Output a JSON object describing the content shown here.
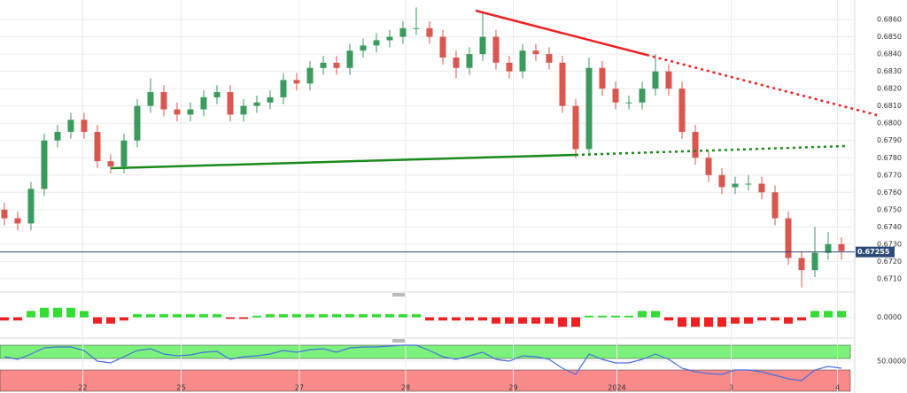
{
  "chart_data": {
    "type": "candlestick",
    "xlim": [
      -0.33,
      64
    ],
    "xticks": [
      {
        "value": 5.9,
        "label": "22"
      },
      {
        "value": 13.3,
        "label": "25"
      },
      {
        "value": 22.2,
        "label": "27"
      },
      {
        "value": 30.2,
        "label": "28"
      },
      {
        "value": 38.3,
        "label": "29"
      },
      {
        "value": 46.1,
        "label": "2024"
      },
      {
        "value": 54.7,
        "label": "3"
      },
      {
        "value": 62.7,
        "label": "4"
      }
    ],
    "ylim": [
      0.67033,
      0.68713
    ],
    "yticks": [
      {
        "value": 0.671,
        "label": "0.6710"
      },
      {
        "value": 0.672,
        "label": "0.6720"
      },
      {
        "value": 0.673,
        "label": "0.6730"
      },
      {
        "value": 0.674,
        "label": "0.6740"
      },
      {
        "value": 0.675,
        "label": "0.6750"
      },
      {
        "value": 0.676,
        "label": "0.6760"
      },
      {
        "value": 0.677,
        "label": "0.6770"
      },
      {
        "value": 0.678,
        "label": "0.6780"
      },
      {
        "value": 0.679,
        "label": "0.6790"
      },
      {
        "value": 0.68,
        "label": "0.6800"
      },
      {
        "value": 0.681,
        "label": "0.6810"
      },
      {
        "value": 0.682,
        "label": "0.6820"
      },
      {
        "value": 0.683,
        "label": "0.6830"
      },
      {
        "value": 0.684,
        "label": "0.6840"
      },
      {
        "value": 0.685,
        "label": "0.6850"
      },
      {
        "value": 0.686,
        "label": "0.6860"
      }
    ],
    "grid": true,
    "up_color": "#3a9b5c",
    "down_color": "#d9574f",
    "last_price": 0.67255,
    "open": [
      0.675,
      0.6745,
      0.6742,
      0.6762,
      0.679,
      0.6795,
      0.6802,
      0.6795,
      0.6778,
      0.6775,
      0.679,
      0.681,
      0.6818,
      0.6808,
      0.6805,
      0.6808,
      0.6815,
      0.6818,
      0.6805,
      0.681,
      0.6812,
      0.6815,
      0.6825,
      0.6823,
      0.6832,
      0.6835,
      0.6832,
      0.6842,
      0.6845,
      0.6848,
      0.685,
      0.6855,
      0.6855,
      0.685,
      0.6838,
      0.6832,
      0.684,
      0.685,
      0.6835,
      0.683,
      0.6842,
      0.684,
      0.6835,
      0.681,
      0.6785,
      0.6832,
      0.682,
      0.6812,
      0.6812,
      0.682,
      0.683,
      0.682,
      0.6795,
      0.678,
      0.677,
      0.6763,
      0.6765,
      0.6765,
      0.676,
      0.6745,
      0.6722,
      0.6715,
      0.6725,
      0.673
    ],
    "high": [
      0.6754,
      0.6749,
      0.6766,
      0.6794,
      0.6799,
      0.6806,
      0.6806,
      0.6799,
      0.6782,
      0.6794,
      0.6814,
      0.6826,
      0.6822,
      0.6812,
      0.6812,
      0.6819,
      0.6822,
      0.6822,
      0.6814,
      0.6816,
      0.6819,
      0.6829,
      0.6829,
      0.6836,
      0.6839,
      0.6839,
      0.6846,
      0.6849,
      0.6852,
      0.6854,
      0.6859,
      0.6867,
      0.6859,
      0.6854,
      0.6842,
      0.6844,
      0.6865,
      0.6854,
      0.6839,
      0.6846,
      0.6846,
      0.6844,
      0.6839,
      0.6814,
      0.6838,
      0.6836,
      0.6824,
      0.6816,
      0.6824,
      0.684,
      0.6834,
      0.6824,
      0.6799,
      0.6784,
      0.6774,
      0.6769,
      0.677,
      0.6769,
      0.6764,
      0.6749,
      0.6726,
      0.674,
      0.6737,
      0.6734
    ],
    "low": [
      0.6741,
      0.6738,
      0.6738,
      0.6758,
      0.6786,
      0.6791,
      0.6791,
      0.6774,
      0.6771,
      0.6771,
      0.6786,
      0.6806,
      0.6804,
      0.6801,
      0.6801,
      0.6804,
      0.6811,
      0.6801,
      0.6801,
      0.6806,
      0.6808,
      0.6811,
      0.6819,
      0.6819,
      0.6828,
      0.6828,
      0.6828,
      0.6838,
      0.6841,
      0.6844,
      0.6846,
      0.6851,
      0.6846,
      0.6834,
      0.6826,
      0.6828,
      0.6836,
      0.6831,
      0.6826,
      0.6826,
      0.6836,
      0.6831,
      0.6806,
      0.678,
      0.6781,
      0.6816,
      0.6808,
      0.6808,
      0.6808,
      0.6816,
      0.6816,
      0.6791,
      0.6776,
      0.6766,
      0.6759,
      0.6759,
      0.6761,
      0.6756,
      0.6741,
      0.6718,
      0.6705,
      0.6711,
      0.6721,
      0.6721
    ],
    "close": [
      0.6745,
      0.6742,
      0.6762,
      0.679,
      0.6795,
      0.6802,
      0.6795,
      0.6778,
      0.6775,
      0.679,
      0.681,
      0.6818,
      0.6808,
      0.6805,
      0.6808,
      0.6815,
      0.6818,
      0.6805,
      0.681,
      0.6812,
      0.6815,
      0.6825,
      0.6823,
      0.6832,
      0.6835,
      0.6832,
      0.6842,
      0.6845,
      0.6848,
      0.685,
      0.6855,
      0.6855,
      0.685,
      0.6838,
      0.6832,
      0.684,
      0.685,
      0.6835,
      0.683,
      0.6842,
      0.684,
      0.6835,
      0.681,
      0.6785,
      0.6832,
      0.682,
      0.6812,
      0.6812,
      0.682,
      0.683,
      0.682,
      0.6795,
      0.678,
      0.677,
      0.6763,
      0.6765,
      0.6765,
      0.676,
      0.6745,
      0.6722,
      0.6715,
      0.6725,
      0.673,
      0.6726
    ],
    "macd": {
      "ylim": [
        -0.0006,
        0.0006
      ],
      "yticks": [
        {
          "value": 0,
          "label": "0.0000"
        }
      ],
      "pos_color": "#33dd33",
      "neg_color": "#ee2222",
      "values": [
        -0.0001,
        -0.0001,
        0.0002,
        0.0003,
        0.0003,
        0.0003,
        0.0002,
        -0.0002,
        -0.0002,
        -0.0001,
        0.0001,
        0.0001,
        0.0001,
        0.0001,
        0.0001,
        0.0001,
        0.0001,
        -5e-05,
        -5e-05,
        5e-05,
        0.0001,
        0.0001,
        0.0001,
        0.0001,
        0.0001,
        0.0001,
        0.0001,
        0.0001,
        0.0001,
        0.0001,
        0.0001,
        0.0001,
        -0.0001,
        -0.0001,
        -0.0001,
        -0.0001,
        -0.0001,
        -0.0002,
        -0.0002,
        -0.0002,
        -0.0002,
        -0.0002,
        -0.0003,
        -0.0003,
        5e-05,
        5e-05,
        5e-05,
        5e-05,
        0.0002,
        0.0002,
        -0.0001,
        -0.0003,
        -0.0003,
        -0.0003,
        -0.0003,
        -0.0002,
        -0.0002,
        -0.0001,
        -0.0001,
        -0.0002,
        -0.0001,
        0.0002,
        0.0002,
        0.0002
      ]
    },
    "rsi": {
      "ylim": [
        0,
        100
      ],
      "yticks": [
        {
          "value": 50,
          "label": "50.0000"
        }
      ],
      "color": "#4a6fe0",
      "values": [
        55,
        52,
        58,
        65,
        66,
        66,
        62,
        50,
        48,
        55,
        62,
        64,
        58,
        56,
        57,
        60,
        61,
        52,
        55,
        56,
        58,
        62,
        60,
        63,
        64,
        60,
        65,
        66,
        66,
        67,
        68,
        68,
        62,
        55,
        52,
        56,
        60,
        52,
        50,
        56,
        55,
        52,
        42,
        35,
        58,
        52,
        48,
        48,
        52,
        58,
        52,
        42,
        38,
        36,
        35,
        40,
        40,
        38,
        34,
        30,
        28,
        40,
        44,
        42
      ]
    }
  }
}
